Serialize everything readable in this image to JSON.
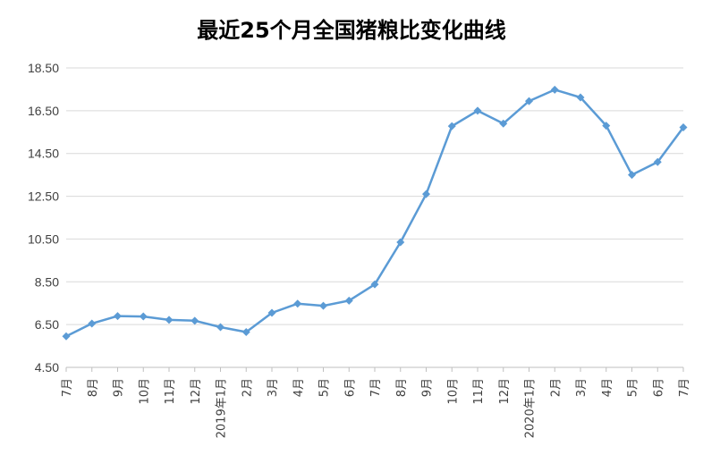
{
  "chart_data": {
    "type": "line",
    "title": "最近25个月全国猪粮比变化曲线",
    "xlabel": "",
    "ylabel": "",
    "ylim": [
      4.5,
      18.5
    ],
    "yticks": [
      "4.50",
      "6.50",
      "8.50",
      "10.50",
      "12.50",
      "14.50",
      "16.50",
      "18.50"
    ],
    "categories": [
      "7月",
      "8月",
      "9月",
      "10月",
      "11月",
      "12月",
      "2019年1月",
      "2月",
      "3月",
      "4月",
      "5月",
      "6月",
      "7月",
      "8月",
      "9月",
      "10月",
      "11月",
      "12月",
      "2020年1月",
      "2月",
      "3月",
      "4月",
      "5月",
      "6月",
      "7月"
    ],
    "series": [
      {
        "values": [
          5.95,
          6.55,
          6.9,
          6.88,
          6.72,
          6.68,
          6.38,
          6.15,
          7.05,
          7.48,
          7.38,
          7.62,
          8.38,
          10.35,
          12.6,
          15.78,
          16.5,
          15.9,
          16.95,
          17.48,
          17.12,
          15.8,
          13.5,
          14.1,
          15.72
        ],
        "color": "#5B9BD5"
      }
    ],
    "grid": true,
    "legend": "none"
  }
}
